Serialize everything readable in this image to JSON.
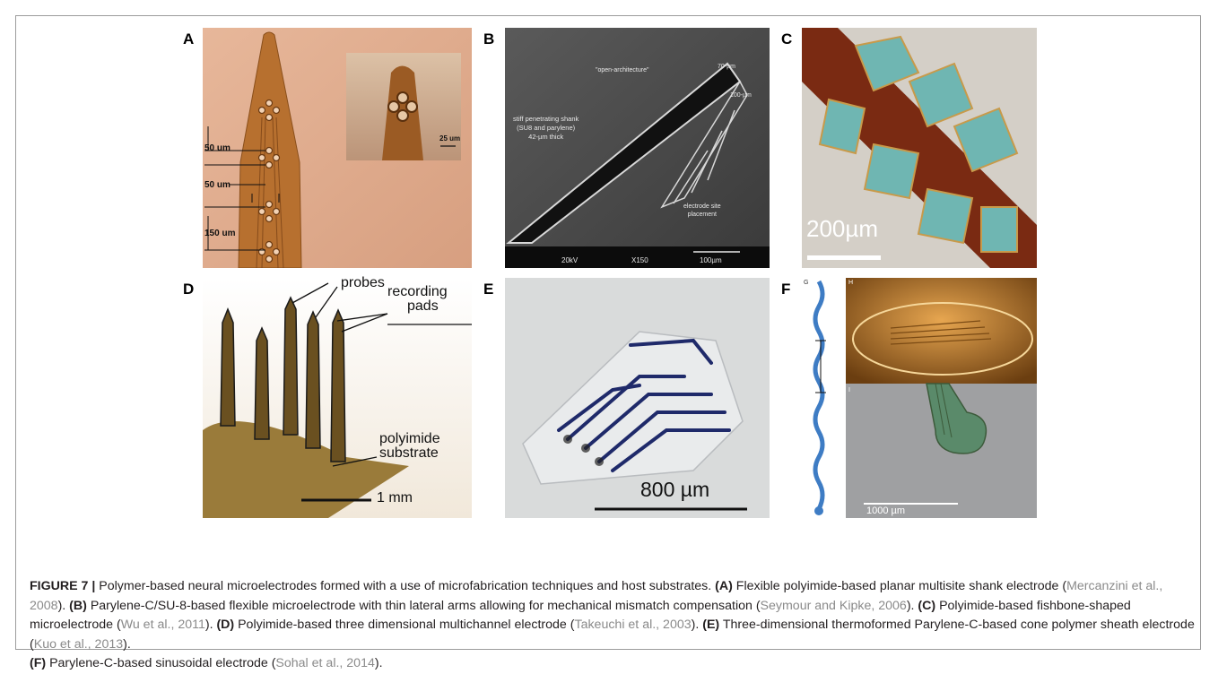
{
  "panel_labels": [
    "A",
    "B",
    "C",
    "D",
    "E",
    "F"
  ],
  "panel_a": {
    "dimension_labels": [
      "50 um",
      "50 um",
      "150 um"
    ],
    "scale_label": "25 um"
  },
  "panel_b": {
    "annotations": [
      "\"open-architecture\"",
      "70-µm",
      "100-µm",
      "stiff penetrating shank",
      "(SU8 and parylene)",
      "42-µm thick",
      "electrode site",
      "placement"
    ],
    "footer": [
      "20kV",
      "X150",
      "100µm"
    ]
  },
  "panel_c": {
    "scale_label": "200µm"
  },
  "panel_d": {
    "annotations": [
      "probes",
      "recording",
      "pads",
      "polyimide",
      "substrate"
    ],
    "scale_label": "1 mm"
  },
  "panel_e": {
    "scale_label": "800 µm"
  },
  "panel_f": {
    "sub_labels": [
      "G",
      "H",
      "I"
    ],
    "scale_label": "1000 µm"
  },
  "caption": {
    "figure_label": "FIGURE 7 |",
    "intro": " Polymer-based neural microelectrodes formed with a use of microfabrication techniques and host substrates. ",
    "items": [
      {
        "label": "(A)",
        "text": " Flexible polyimide-based planar multisite shank electrode (",
        "cite": "Mercanzini et al., 2008",
        "end": "). "
      },
      {
        "label": "(B)",
        "text": " Parylene-C/SU-8-based flexible microelectrode with thin lateral arms allowing for mechanical mismatch compensation (",
        "cite": "Seymour and Kipke, 2006",
        "end": "). "
      },
      {
        "label": "(C)",
        "text": " Polyimide-based fishbone-shaped microelectrode (",
        "cite": "Wu et al., 2011",
        "end": "). "
      },
      {
        "label": "(D)",
        "text": " Polyimide-based three dimensional multichannel electrode (",
        "cite": "Takeuchi et al., 2003",
        "end": "). "
      },
      {
        "label": "(E)",
        "text": " Three-dimensional thermoformed Parylene-C-based cone polymer sheath electrode (",
        "cite": "Kuo et al., 2013",
        "end": "). "
      },
      {
        "label": "(F)",
        "text": " Parylene-C-based sinusoidal electrode (",
        "cite": "Sohal et al., 2014",
        "end": ")."
      }
    ]
  }
}
